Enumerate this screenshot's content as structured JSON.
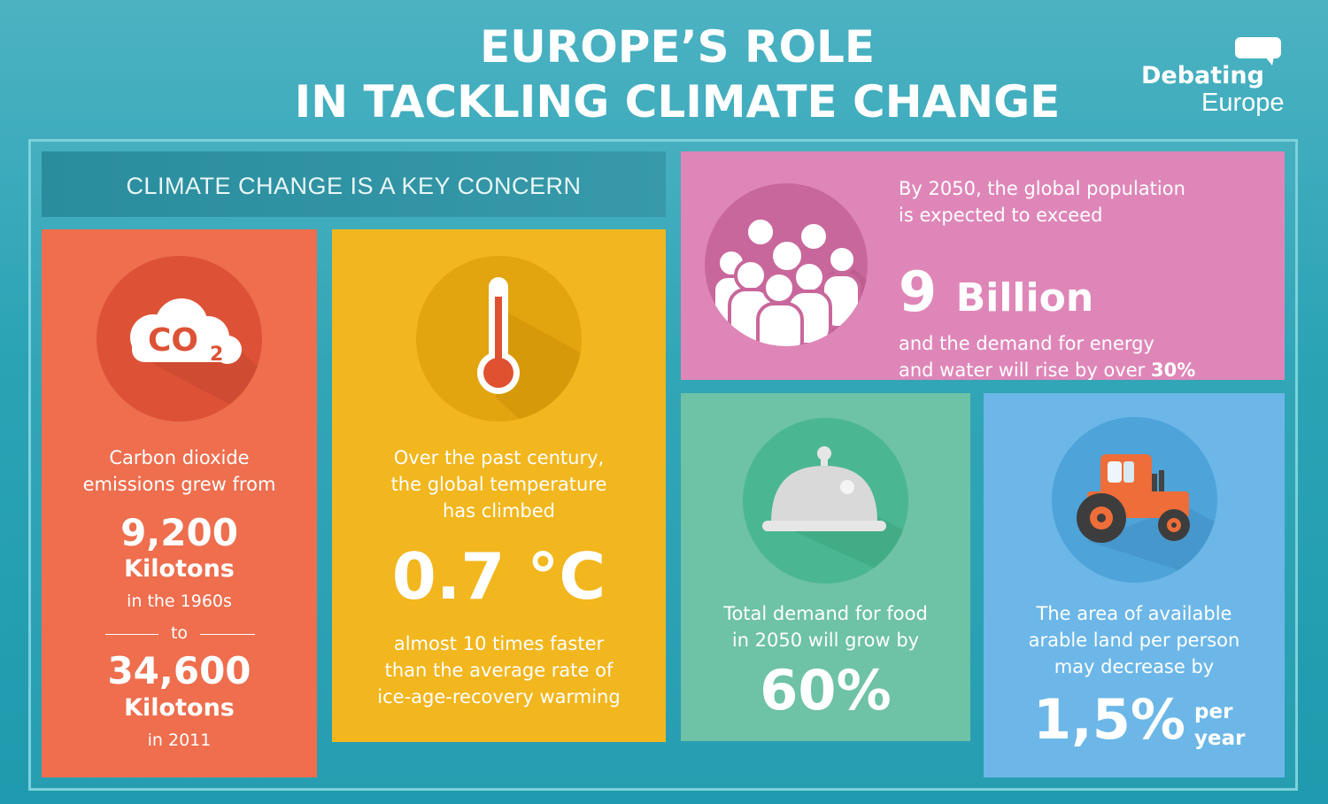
{
  "header": {
    "title_line1": "EUROPE’S ROLE",
    "title_line2": "IN TACKLING CLIMATE CHANGE",
    "logo_line1": "Debating",
    "logo_line2": "Europe"
  },
  "banner": {
    "label": "CLIMATE CHANGE IS A KEY CONCERN"
  },
  "co2": {
    "icon": "co2-cloud-icon",
    "icon_text": "CO",
    "icon_sub": "2",
    "intro_line1": "Carbon dioxide",
    "intro_line2": "emissions grew from",
    "value1": "9,200",
    "unit1": "Kilotons",
    "period1": "in the 1960s",
    "to": "to",
    "value2": "34,600",
    "unit2": "Kilotons",
    "period2": "in 2011",
    "color": "#ee6e4e"
  },
  "temperature": {
    "icon": "thermometer-icon",
    "intro_line1": "Over the past century,",
    "intro_line2": "the global temperature",
    "intro_line3": "has climbed",
    "value": "0.7 °C",
    "outro_line1": "almost 10 times faster",
    "outro_line2": "than the average rate of",
    "outro_line3": "ice-age-recovery warming",
    "color": "#f2b61e"
  },
  "population": {
    "icon": "people-group-icon",
    "intro_line1": "By 2050, the global population",
    "intro_line2": "is expected to exceed",
    "value": "9",
    "unit": "Billion",
    "outro_line1": "and the demand for energy",
    "outro_line2_prefix": "and water will rise by over ",
    "outro_line2_value": "30%",
    "color": "#df86b8"
  },
  "food": {
    "icon": "serving-cloche-icon",
    "intro_line1": "Total demand for food",
    "intro_line2": "in 2050 will grow by",
    "value": "60%",
    "color": "#6ec2a5"
  },
  "land": {
    "icon": "tractor-icon",
    "intro_line1": "The area of available",
    "intro_line2": "arable land per person",
    "intro_line3": "may decrease by",
    "value": "1,5%",
    "unit_line1": "per",
    "unit_line2": "year",
    "color": "#6cb7e8"
  }
}
